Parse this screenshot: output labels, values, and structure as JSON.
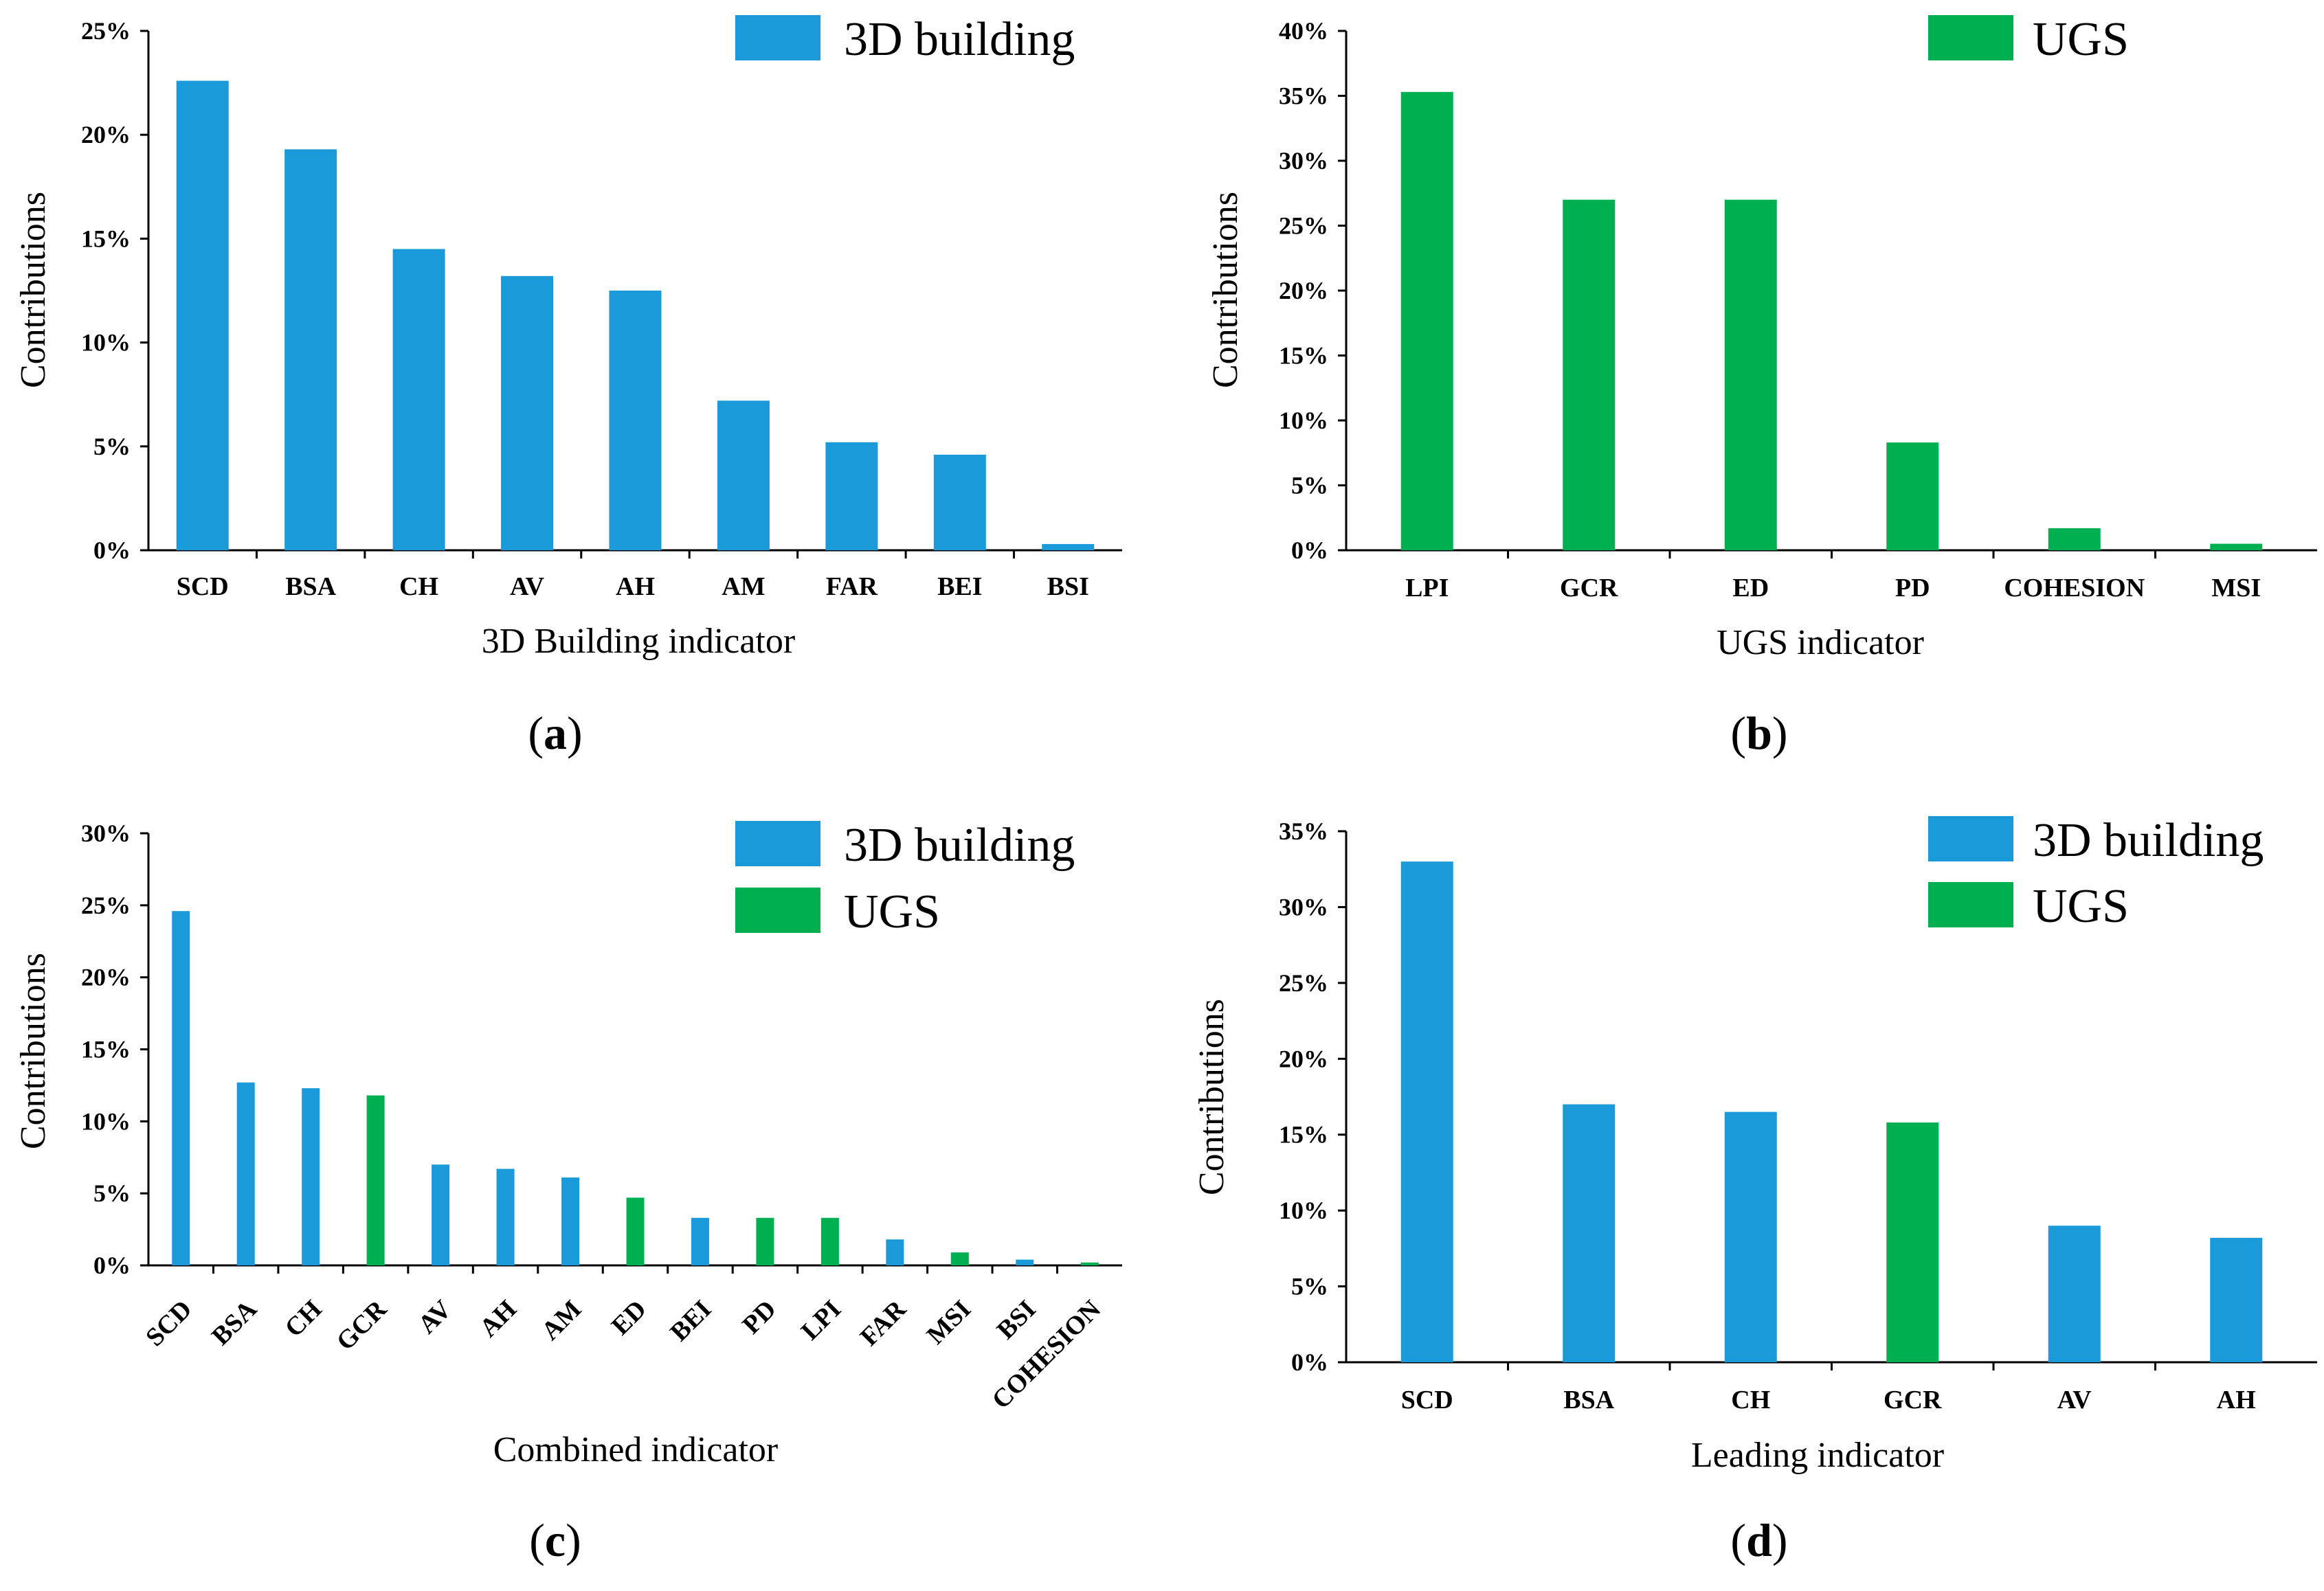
{
  "colors": {
    "building": "#1a9ad8",
    "ugs": "#00b050"
  },
  "chart_data": [
    {
      "type": "bar",
      "panel": "(a)",
      "panel_letter": "a",
      "xlabel": "3D Building indicator",
      "ylabel": "Contributions",
      "ylim": [
        0,
        25
      ],
      "yticks": [
        "0%",
        "5%",
        "10%",
        "15%",
        "20%",
        "25%"
      ],
      "legend": [
        {
          "name": "3D building",
          "group": "building"
        }
      ],
      "legend_position": "top-right",
      "categories": [
        "SCD",
        "BSA",
        "CH",
        "AV",
        "AH",
        "AM",
        "FAR",
        "BEI",
        "BSI"
      ],
      "values": [
        22.6,
        19.3,
        14.5,
        13.2,
        12.5,
        7.2,
        5.2,
        4.6,
        0.3
      ],
      "groups": [
        "building",
        "building",
        "building",
        "building",
        "building",
        "building",
        "building",
        "building",
        "building"
      ]
    },
    {
      "type": "bar",
      "panel": "(b)",
      "panel_letter": "b",
      "xlabel": "UGS indicator",
      "ylabel": "Contributions",
      "ylim": [
        0,
        40
      ],
      "yticks": [
        "0%",
        "5%",
        "10%",
        "15%",
        "20%",
        "25%",
        "30%",
        "35%",
        "40%"
      ],
      "legend": [
        {
          "name": "UGS",
          "group": "ugs"
        }
      ],
      "legend_position": "top-right",
      "categories": [
        "LPI",
        "GCR",
        "ED",
        "PD",
        "COHESION",
        "MSI"
      ],
      "values": [
        35.3,
        27.0,
        27.0,
        8.3,
        1.7,
        0.5
      ],
      "groups": [
        "ugs",
        "ugs",
        "ugs",
        "ugs",
        "ugs",
        "ugs"
      ]
    },
    {
      "type": "bar",
      "panel": "(c)",
      "panel_letter": "c",
      "xlabel": "Combined indicator",
      "ylabel": "Contributions",
      "ylim": [
        0,
        30
      ],
      "yticks": [
        "0%",
        "5%",
        "10%",
        "15%",
        "20%",
        "25%",
        "30%"
      ],
      "legend": [
        {
          "name": "3D building",
          "group": "building"
        },
        {
          "name": "UGS",
          "group": "ugs"
        }
      ],
      "legend_position": "top-right",
      "categories": [
        "SCD",
        "BSA",
        "CH",
        "GCR",
        "AV",
        "AH",
        "AM",
        "ED",
        "BEI",
        "PD",
        "LPI",
        "FAR",
        "MSI",
        "BSI",
        "COHESION"
      ],
      "values": [
        24.6,
        12.7,
        12.3,
        11.8,
        7.0,
        6.7,
        6.1,
        4.7,
        3.3,
        3.3,
        3.3,
        1.8,
        0.9,
        0.4,
        0.2
      ],
      "groups": [
        "building",
        "building",
        "building",
        "ugs",
        "building",
        "building",
        "building",
        "ugs",
        "building",
        "ugs",
        "ugs",
        "building",
        "ugs",
        "building",
        "ugs"
      ]
    },
    {
      "type": "bar",
      "panel": "(d)",
      "panel_letter": "d",
      "xlabel": "Leading indicator",
      "ylabel": "Contributions",
      "ylim": [
        0,
        35
      ],
      "yticks": [
        "0%",
        "5%",
        "10%",
        "15%",
        "20%",
        "25%",
        "30%",
        "35%"
      ],
      "legend": [
        {
          "name": "3D building",
          "group": "building"
        },
        {
          "name": "UGS",
          "group": "ugs"
        }
      ],
      "legend_position": "top-right",
      "categories": [
        "SCD",
        "BSA",
        "CH",
        "GCR",
        "AV",
        "AH"
      ],
      "values": [
        33.0,
        17.0,
        16.5,
        15.8,
        9.0,
        8.2
      ],
      "groups": [
        "building",
        "building",
        "building",
        "ugs",
        "building",
        "building"
      ]
    }
  ]
}
